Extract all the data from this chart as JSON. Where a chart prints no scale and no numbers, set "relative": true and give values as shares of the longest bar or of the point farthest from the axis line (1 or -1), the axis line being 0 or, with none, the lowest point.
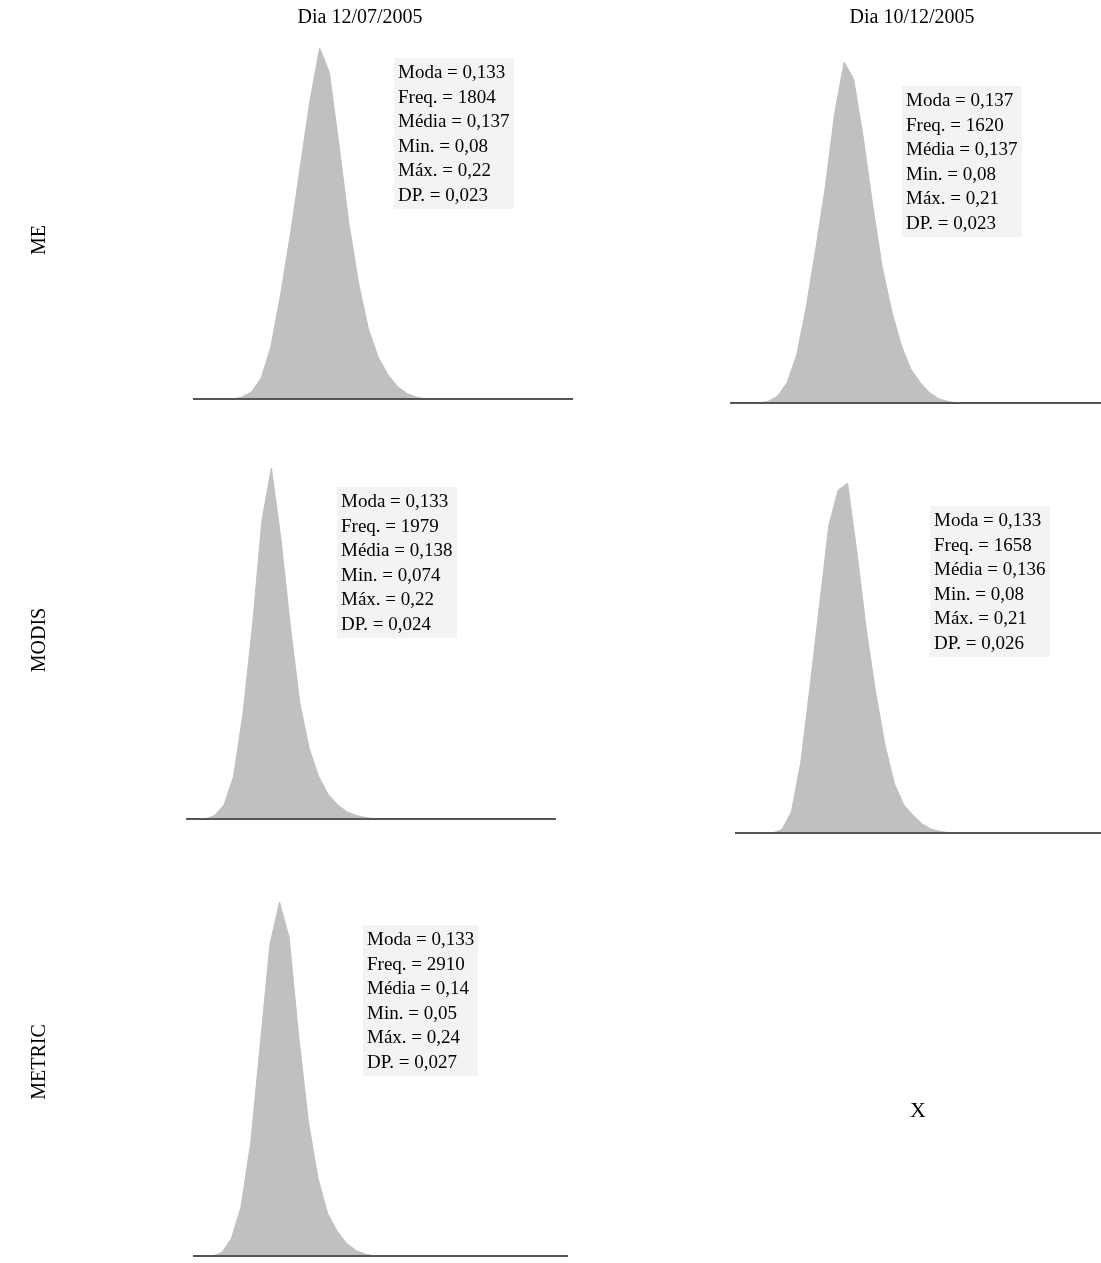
{
  "chart_data": [
    {
      "type": "area",
      "title": "Dia 12/07/2005",
      "ylabel": "ME",
      "relative": true,
      "color": "#c0c0c0",
      "annotations": [
        "Moda = 0,133",
        "Freq. = 1804",
        "Média = 0,137",
        "Min. = 0,08",
        "Máx. = 0,22",
        "DP. = 0,023"
      ],
      "categories": [
        null,
        null,
        null,
        null,
        null,
        null,
        null,
        null,
        null,
        null,
        null,
        null,
        null,
        null,
        null,
        null,
        null,
        null,
        null,
        null,
        null,
        null,
        null,
        null,
        null,
        null,
        null,
        null,
        null,
        null,
        null,
        null,
        null,
        null,
        null,
        null,
        null,
        null,
        null,
        null
      ],
      "values": [
        0,
        0,
        0,
        0,
        0,
        0.005,
        0.02,
        0.06,
        0.15,
        0.3,
        0.47,
        0.66,
        0.85,
        1,
        0.93,
        0.72,
        0.5,
        0.33,
        0.2,
        0.12,
        0.07,
        0.035,
        0.015,
        0.005,
        0,
        0,
        0,
        0,
        0,
        0,
        0,
        0,
        0,
        0,
        0,
        0,
        0,
        0,
        0,
        0
      ]
    },
    {
      "type": "area",
      "title": "Dia 10/12/2005",
      "relative": true,
      "color": "#c0c0c0",
      "annotations": [
        "Moda = 0,137",
        "Freq. = 1620",
        "Média = 0,137",
        "Min. = 0,08",
        "Máx. = 0,21",
        "DP. = 0,023"
      ],
      "categories": [
        null,
        null,
        null,
        null,
        null,
        null,
        null,
        null,
        null,
        null,
        null,
        null,
        null,
        null,
        null,
        null,
        null,
        null,
        null,
        null,
        null,
        null,
        null,
        null,
        null,
        null,
        null,
        null,
        null,
        null,
        null,
        null,
        null,
        null,
        null,
        null,
        null,
        null,
        null,
        null
      ],
      "values": [
        0,
        0,
        0,
        0,
        0.005,
        0.02,
        0.06,
        0.14,
        0.28,
        0.45,
        0.63,
        0.85,
        1,
        0.95,
        0.78,
        0.58,
        0.4,
        0.27,
        0.17,
        0.1,
        0.06,
        0.03,
        0.012,
        0.004,
        0,
        0,
        0,
        0,
        0,
        0,
        0,
        0,
        0,
        0,
        0,
        0,
        0,
        0,
        0,
        0
      ]
    },
    {
      "type": "area",
      "ylabel": "MODIS",
      "relative": true,
      "color": "#c0c0c0",
      "annotations": [
        "Moda = 0,133",
        "Freq. = 1979",
        "Média = 0,138",
        "Min. = 0,074",
        "Máx. = 0,22",
        "DP. = 0,024"
      ],
      "categories": [
        null,
        null,
        null,
        null,
        null,
        null,
        null,
        null,
        null,
        null,
        null,
        null,
        null,
        null,
        null,
        null,
        null,
        null,
        null,
        null,
        null,
        null,
        null,
        null,
        null,
        null,
        null,
        null,
        null,
        null,
        null,
        null,
        null,
        null,
        null,
        null,
        null,
        null,
        null,
        null
      ],
      "values": [
        0,
        0,
        0,
        0.01,
        0.04,
        0.12,
        0.3,
        0.55,
        0.85,
        1,
        0.8,
        0.55,
        0.33,
        0.2,
        0.12,
        0.07,
        0.04,
        0.02,
        0.01,
        0.004,
        0,
        0,
        0,
        0,
        0,
        0,
        0,
        0,
        0,
        0,
        0,
        0,
        0,
        0,
        0,
        0,
        0,
        0,
        0,
        0
      ]
    },
    {
      "type": "area",
      "relative": true,
      "color": "#c0c0c0",
      "annotations": [
        "Moda = 0,133",
        "Freq. = 1658",
        "Média = 0,136",
        "Min. = 0,08",
        "Máx. = 0,21",
        "DP. = 0,026"
      ],
      "categories": [
        null,
        null,
        null,
        null,
        null,
        null,
        null,
        null,
        null,
        null,
        null,
        null,
        null,
        null,
        null,
        null,
        null,
        null,
        null,
        null,
        null,
        null,
        null,
        null,
        null,
        null,
        null,
        null,
        null,
        null,
        null,
        null,
        null,
        null,
        null,
        null,
        null,
        null,
        null,
        null
      ],
      "values": [
        0,
        0,
        0,
        0,
        0,
        0.01,
        0.06,
        0.2,
        0.42,
        0.65,
        0.88,
        0.98,
        1,
        0.8,
        0.58,
        0.4,
        0.25,
        0.14,
        0.08,
        0.05,
        0.025,
        0.01,
        0.004,
        0,
        0,
        0,
        0,
        0,
        0,
        0,
        0,
        0,
        0,
        0,
        0,
        0,
        0,
        0,
        0,
        0
      ]
    },
    {
      "type": "area",
      "ylabel": "METRIC",
      "relative": true,
      "color": "#c0c0c0",
      "annotations": [
        "Moda = 0,133",
        "Freq. = 2910",
        "Média = 0,14",
        "Min. = 0,05",
        "Máx. = 0,24",
        "DP. = 0,027"
      ],
      "categories": [
        null,
        null,
        null,
        null,
        null,
        null,
        null,
        null,
        null,
        null,
        null,
        null,
        null,
        null,
        null,
        null,
        null,
        null,
        null,
        null,
        null,
        null,
        null,
        null,
        null,
        null,
        null,
        null,
        null,
        null,
        null,
        null,
        null,
        null,
        null,
        null,
        null,
        null,
        null,
        null
      ],
      "values": [
        0,
        0,
        0,
        0.01,
        0.05,
        0.14,
        0.32,
        0.6,
        0.88,
        1,
        0.9,
        0.62,
        0.38,
        0.22,
        0.12,
        0.07,
        0.035,
        0.015,
        0.005,
        0,
        0,
        0,
        0,
        0,
        0,
        0,
        0,
        0,
        0,
        0,
        0,
        0,
        0,
        0,
        0,
        0,
        0,
        0,
        0,
        0
      ]
    },
    {
      "type": "other",
      "annotations": [
        "X"
      ]
    }
  ]
}
